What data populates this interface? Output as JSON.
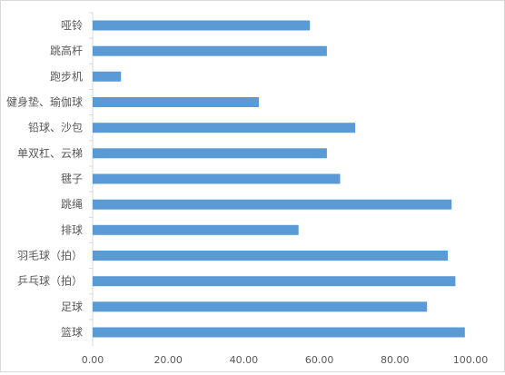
{
  "chart_data": {
    "type": "bar",
    "orientation": "horizontal",
    "title": "",
    "xlabel": "",
    "ylabel": "",
    "categories": [
      "哑铃",
      "跳高杆",
      "跑步机",
      "健身垫、瑜伽球",
      "铅球、沙包",
      "单双杠、云梯",
      "毽子",
      "跳绳",
      "排球",
      "羽毛球（拍）",
      "乒乓球（拍）",
      "足球",
      "篮球"
    ],
    "values": [
      57.5,
      62.0,
      7.5,
      44.0,
      69.5,
      62.0,
      65.5,
      95.0,
      54.5,
      94.0,
      96.0,
      88.5,
      98.5
    ],
    "xlim": [
      0,
      100
    ],
    "xticks": [
      "0.00",
      "20.00",
      "40.00",
      "60.00",
      "80.00",
      "100.00"
    ],
    "bar_color": "#5b9bd5",
    "axis_color": "#d9d9d9",
    "text_color": "#595959",
    "grid": false,
    "legend": false
  }
}
